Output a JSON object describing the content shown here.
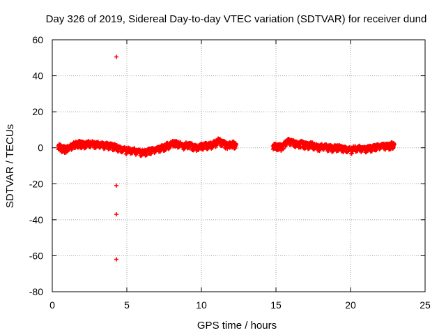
{
  "chart_data": {
    "type": "scatter",
    "title": "Day 326 of 2019, Sidereal Day-to-day VTEC variation (SDTVAR) for receiver dund",
    "xlabel": "GPS time / hours",
    "ylabel": "SDTVAR / TECUs",
    "xlim": [
      0,
      25
    ],
    "ylim": [
      -80,
      60
    ],
    "xticks": [
      "0",
      "5",
      "10",
      "15",
      "20",
      "25"
    ],
    "yticks": [
      "-80",
      "-60",
      "-40",
      "-20",
      "0",
      "20",
      "40",
      "60"
    ],
    "grid": true,
    "marker": "+",
    "colors": {
      "series": "#ff0000",
      "grid": "#a0a0a0",
      "axis": "#000000"
    },
    "series": [
      {
        "name": "SDTVAR",
        "segments": [
          {
            "x": [
              0.4,
              0.6,
              0.8,
              1.0,
              1.2,
              1.4,
              1.6,
              1.8,
              2.0,
              2.3,
              2.6,
              2.9,
              3.2,
              3.5,
              3.8,
              4.1,
              4.3,
              4.6,
              4.9,
              5.2,
              5.5,
              5.8,
              6.1,
              6.4,
              6.7,
              7.0,
              7.3,
              7.6,
              7.9,
              8.2,
              8.5,
              8.8,
              9.1,
              9.4,
              9.7,
              10.0,
              10.3,
              10.6,
              10.9,
              11.2,
              11.5,
              11.8,
              12.1,
              12.3
            ],
            "y": [
              1.0,
              -0.5,
              -1.0,
              -0.5,
              0.0,
              1.0,
              1.5,
              2.0,
              1.5,
              1.8,
              2.0,
              1.6,
              1.5,
              1.2,
              1.0,
              0.5,
              0.0,
              -1.0,
              -1.5,
              -2.0,
              -2.0,
              -2.5,
              -3.0,
              -2.0,
              -1.5,
              -1.0,
              -0.5,
              0.5,
              1.5,
              2.5,
              1.5,
              0.5,
              1.5,
              0.5,
              0.0,
              0.8,
              1.2,
              1.0,
              2.0,
              3.5,
              2.0,
              1.0,
              2.0,
              1.0
            ]
          },
          {
            "x": [
              14.8,
              15.0,
              15.3,
              15.6,
              15.8,
              16.1,
              16.4,
              16.7,
              17.0,
              17.3,
              17.6,
              17.9,
              18.2,
              18.5,
              18.8,
              19.1,
              19.4,
              19.7,
              20.0,
              20.3,
              20.6,
              20.9,
              21.2,
              21.5,
              21.8,
              22.1,
              22.4,
              22.7,
              22.9
            ],
            "y": [
              1.0,
              0.5,
              0.0,
              2.0,
              3.5,
              2.5,
              1.5,
              2.0,
              1.0,
              1.5,
              0.5,
              0.0,
              0.5,
              0.0,
              -0.5,
              0.0,
              -0.5,
              -1.0,
              -1.5,
              -1.0,
              -0.5,
              -1.0,
              -0.5,
              0.0,
              0.5,
              1.0,
              0.5,
              1.0,
              1.5
            ]
          }
        ],
        "outliers": {
          "x": [
            4.3,
            4.3,
            4.3,
            4.3
          ],
          "y": [
            50.5,
            -21.0,
            -37.0,
            -62.0
          ]
        }
      }
    ]
  }
}
